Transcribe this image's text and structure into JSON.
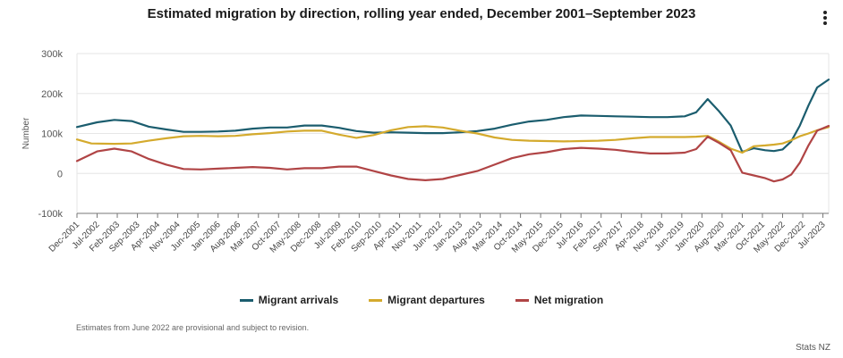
{
  "title": "Estimated migration by direction, rolling year ended, December 2001–September 2023",
  "menu_icon": "kebab-menu-icon",
  "footnote": "Estimates from June 2022 are provisional and subject to revision.",
  "credit": "Stats NZ",
  "colors": {
    "arrivals": "#1b5d6e",
    "departures": "#d4aa2d",
    "net": "#b04445",
    "grid": "#e6e6e6",
    "axis": "#777777"
  },
  "chart_data": {
    "type": "line",
    "title": "Estimated migration by direction, rolling year ended, December 2001–September 2023",
    "xlabel": "",
    "ylabel": "Number",
    "ylim": [
      -100000,
      300000
    ],
    "yticks": [
      {
        "value": -100000,
        "label": "-100k"
      },
      {
        "value": 0,
        "label": "0"
      },
      {
        "value": 100000,
        "label": "100k"
      },
      {
        "value": 200000,
        "label": "200k"
      },
      {
        "value": 300000,
        "label": "300k"
      }
    ],
    "xrange": [
      2001.917,
      2023.667
    ],
    "xticks": [
      {
        "t": 2001.917,
        "label": "Dec-2001"
      },
      {
        "t": 2002.5,
        "label": "Jul-2002"
      },
      {
        "t": 2003.083,
        "label": "Feb-2003"
      },
      {
        "t": 2003.667,
        "label": "Sep-2003"
      },
      {
        "t": 2004.25,
        "label": "Apr-2004"
      },
      {
        "t": 2004.833,
        "label": "Nov-2004"
      },
      {
        "t": 2005.417,
        "label": "Jun-2005"
      },
      {
        "t": 2006.0,
        "label": "Jan-2006"
      },
      {
        "t": 2006.583,
        "label": "Aug-2006"
      },
      {
        "t": 2007.167,
        "label": "Mar-2007"
      },
      {
        "t": 2007.75,
        "label": "Oct-2007"
      },
      {
        "t": 2008.333,
        "label": "May-2008"
      },
      {
        "t": 2008.917,
        "label": "Dec-2008"
      },
      {
        "t": 2009.5,
        "label": "Jul-2009"
      },
      {
        "t": 2010.083,
        "label": "Feb-2010"
      },
      {
        "t": 2010.667,
        "label": "Sep-2010"
      },
      {
        "t": 2011.25,
        "label": "Apr-2011"
      },
      {
        "t": 2011.833,
        "label": "Nov-2011"
      },
      {
        "t": 2012.417,
        "label": "Jun-2012"
      },
      {
        "t": 2013.0,
        "label": "Jan-2013"
      },
      {
        "t": 2013.583,
        "label": "Aug-2013"
      },
      {
        "t": 2014.167,
        "label": "Mar-2014"
      },
      {
        "t": 2014.75,
        "label": "Oct-2014"
      },
      {
        "t": 2015.333,
        "label": "May-2015"
      },
      {
        "t": 2015.917,
        "label": "Dec-2015"
      },
      {
        "t": 2016.5,
        "label": "Jul-2016"
      },
      {
        "t": 2017.083,
        "label": "Feb-2017"
      },
      {
        "t": 2017.667,
        "label": "Sep-2017"
      },
      {
        "t": 2018.25,
        "label": "Apr-2018"
      },
      {
        "t": 2018.833,
        "label": "Nov-2018"
      },
      {
        "t": 2019.417,
        "label": "Jun-2019"
      },
      {
        "t": 2020.0,
        "label": "Jan-2020"
      },
      {
        "t": 2020.583,
        "label": "Aug-2020"
      },
      {
        "t": 2021.167,
        "label": "Mar-2021"
      },
      {
        "t": 2021.75,
        "label": "Oct-2021"
      },
      {
        "t": 2022.333,
        "label": "May-2022"
      },
      {
        "t": 2022.917,
        "label": "Dec-2022"
      },
      {
        "t": 2023.5,
        "label": "Jul-2023"
      }
    ],
    "legend": "bottom-center",
    "series": [
      {
        "key": "arrivals",
        "name": "Migrant arrivals",
        "points": [
          [
            2001.917,
            116000
          ],
          [
            2002.5,
            128000
          ],
          [
            2003.0,
            134000
          ],
          [
            2003.5,
            131000
          ],
          [
            2004.0,
            117000
          ],
          [
            2004.5,
            110000
          ],
          [
            2005.0,
            104000
          ],
          [
            2005.5,
            104000
          ],
          [
            2006.0,
            105000
          ],
          [
            2006.5,
            107000
          ],
          [
            2007.0,
            112000
          ],
          [
            2007.5,
            115000
          ],
          [
            2008.0,
            115000
          ],
          [
            2008.5,
            120000
          ],
          [
            2009.0,
            120000
          ],
          [
            2009.5,
            114000
          ],
          [
            2010.0,
            106000
          ],
          [
            2010.5,
            102000
          ],
          [
            2011.0,
            103000
          ],
          [
            2011.5,
            102000
          ],
          [
            2012.0,
            101000
          ],
          [
            2012.5,
            101000
          ],
          [
            2013.0,
            103000
          ],
          [
            2013.5,
            106000
          ],
          [
            2014.0,
            112000
          ],
          [
            2014.5,
            122000
          ],
          [
            2015.0,
            130000
          ],
          [
            2015.5,
            134000
          ],
          [
            2016.0,
            141000
          ],
          [
            2016.5,
            145000
          ],
          [
            2017.0,
            144000
          ],
          [
            2017.5,
            143000
          ],
          [
            2018.0,
            142000
          ],
          [
            2018.5,
            141000
          ],
          [
            2019.0,
            141000
          ],
          [
            2019.5,
            143000
          ],
          [
            2019.833,
            153000
          ],
          [
            2020.167,
            186000
          ],
          [
            2020.5,
            155000
          ],
          [
            2020.833,
            120000
          ],
          [
            2021.167,
            54000
          ],
          [
            2021.5,
            63000
          ],
          [
            2021.833,
            58000
          ],
          [
            2022.083,
            56000
          ],
          [
            2022.333,
            60000
          ],
          [
            2022.583,
            80000
          ],
          [
            2022.833,
            120000
          ],
          [
            2023.083,
            170000
          ],
          [
            2023.333,
            215000
          ],
          [
            2023.667,
            235000
          ]
        ]
      },
      {
        "key": "departures",
        "name": "Migrant departures",
        "points": [
          [
            2001.917,
            85000
          ],
          [
            2002.333,
            75000
          ],
          [
            2003.0,
            74000
          ],
          [
            2003.5,
            75000
          ],
          [
            2004.0,
            82000
          ],
          [
            2004.5,
            88000
          ],
          [
            2005.0,
            93000
          ],
          [
            2005.5,
            94000
          ],
          [
            2006.0,
            93000
          ],
          [
            2006.5,
            94000
          ],
          [
            2007.0,
            98000
          ],
          [
            2007.5,
            101000
          ],
          [
            2008.0,
            105000
          ],
          [
            2008.5,
            107000
          ],
          [
            2009.0,
            107000
          ],
          [
            2009.5,
            97000
          ],
          [
            2010.0,
            89000
          ],
          [
            2010.5,
            96000
          ],
          [
            2011.0,
            108000
          ],
          [
            2011.5,
            116000
          ],
          [
            2012.0,
            118000
          ],
          [
            2012.5,
            115000
          ],
          [
            2013.0,
            107000
          ],
          [
            2013.5,
            100000
          ],
          [
            2014.0,
            90000
          ],
          [
            2014.5,
            84000
          ],
          [
            2015.0,
            82000
          ],
          [
            2015.5,
            81000
          ],
          [
            2016.0,
            80000
          ],
          [
            2016.5,
            81000
          ],
          [
            2017.0,
            82000
          ],
          [
            2017.5,
            84000
          ],
          [
            2018.0,
            88000
          ],
          [
            2018.5,
            91000
          ],
          [
            2019.0,
            91000
          ],
          [
            2019.5,
            91000
          ],
          [
            2019.833,
            92000
          ],
          [
            2020.167,
            94000
          ],
          [
            2020.5,
            79000
          ],
          [
            2020.833,
            62000
          ],
          [
            2021.167,
            52000
          ],
          [
            2021.5,
            68000
          ],
          [
            2021.833,
            70000
          ],
          [
            2022.083,
            72000
          ],
          [
            2022.333,
            75000
          ],
          [
            2022.583,
            83000
          ],
          [
            2022.833,
            93000
          ],
          [
            2023.083,
            100000
          ],
          [
            2023.333,
            108000
          ],
          [
            2023.667,
            116000
          ]
        ]
      },
      {
        "key": "net",
        "name": "Net migration",
        "points": [
          [
            2001.917,
            31000
          ],
          [
            2002.5,
            55000
          ],
          [
            2003.0,
            62000
          ],
          [
            2003.5,
            55000
          ],
          [
            2004.0,
            36000
          ],
          [
            2004.5,
            22000
          ],
          [
            2005.0,
            11000
          ],
          [
            2005.5,
            10000
          ],
          [
            2006.0,
            12000
          ],
          [
            2006.5,
            14000
          ],
          [
            2007.0,
            16000
          ],
          [
            2007.5,
            14000
          ],
          [
            2008.0,
            10000
          ],
          [
            2008.5,
            13000
          ],
          [
            2009.0,
            13000
          ],
          [
            2009.5,
            17000
          ],
          [
            2010.0,
            17000
          ],
          [
            2010.5,
            6000
          ],
          [
            2011.0,
            -5000
          ],
          [
            2011.5,
            -14000
          ],
          [
            2012.0,
            -17000
          ],
          [
            2012.5,
            -14000
          ],
          [
            2013.0,
            -4000
          ],
          [
            2013.5,
            6000
          ],
          [
            2014.0,
            22000
          ],
          [
            2014.5,
            38000
          ],
          [
            2015.0,
            48000
          ],
          [
            2015.5,
            53000
          ],
          [
            2016.0,
            61000
          ],
          [
            2016.5,
            64000
          ],
          [
            2017.0,
            62000
          ],
          [
            2017.5,
            59000
          ],
          [
            2018.0,
            54000
          ],
          [
            2018.5,
            50000
          ],
          [
            2019.0,
            50000
          ],
          [
            2019.5,
            52000
          ],
          [
            2019.833,
            61000
          ],
          [
            2020.167,
            92000
          ],
          [
            2020.5,
            76000
          ],
          [
            2020.833,
            58000
          ],
          [
            2021.167,
            2000
          ],
          [
            2021.5,
            -5000
          ],
          [
            2021.833,
            -12000
          ],
          [
            2022.083,
            -20000
          ],
          [
            2022.333,
            -15000
          ],
          [
            2022.583,
            -3000
          ],
          [
            2022.833,
            27000
          ],
          [
            2023.083,
            70000
          ],
          [
            2023.333,
            107000
          ],
          [
            2023.667,
            119000
          ]
        ]
      }
    ]
  }
}
